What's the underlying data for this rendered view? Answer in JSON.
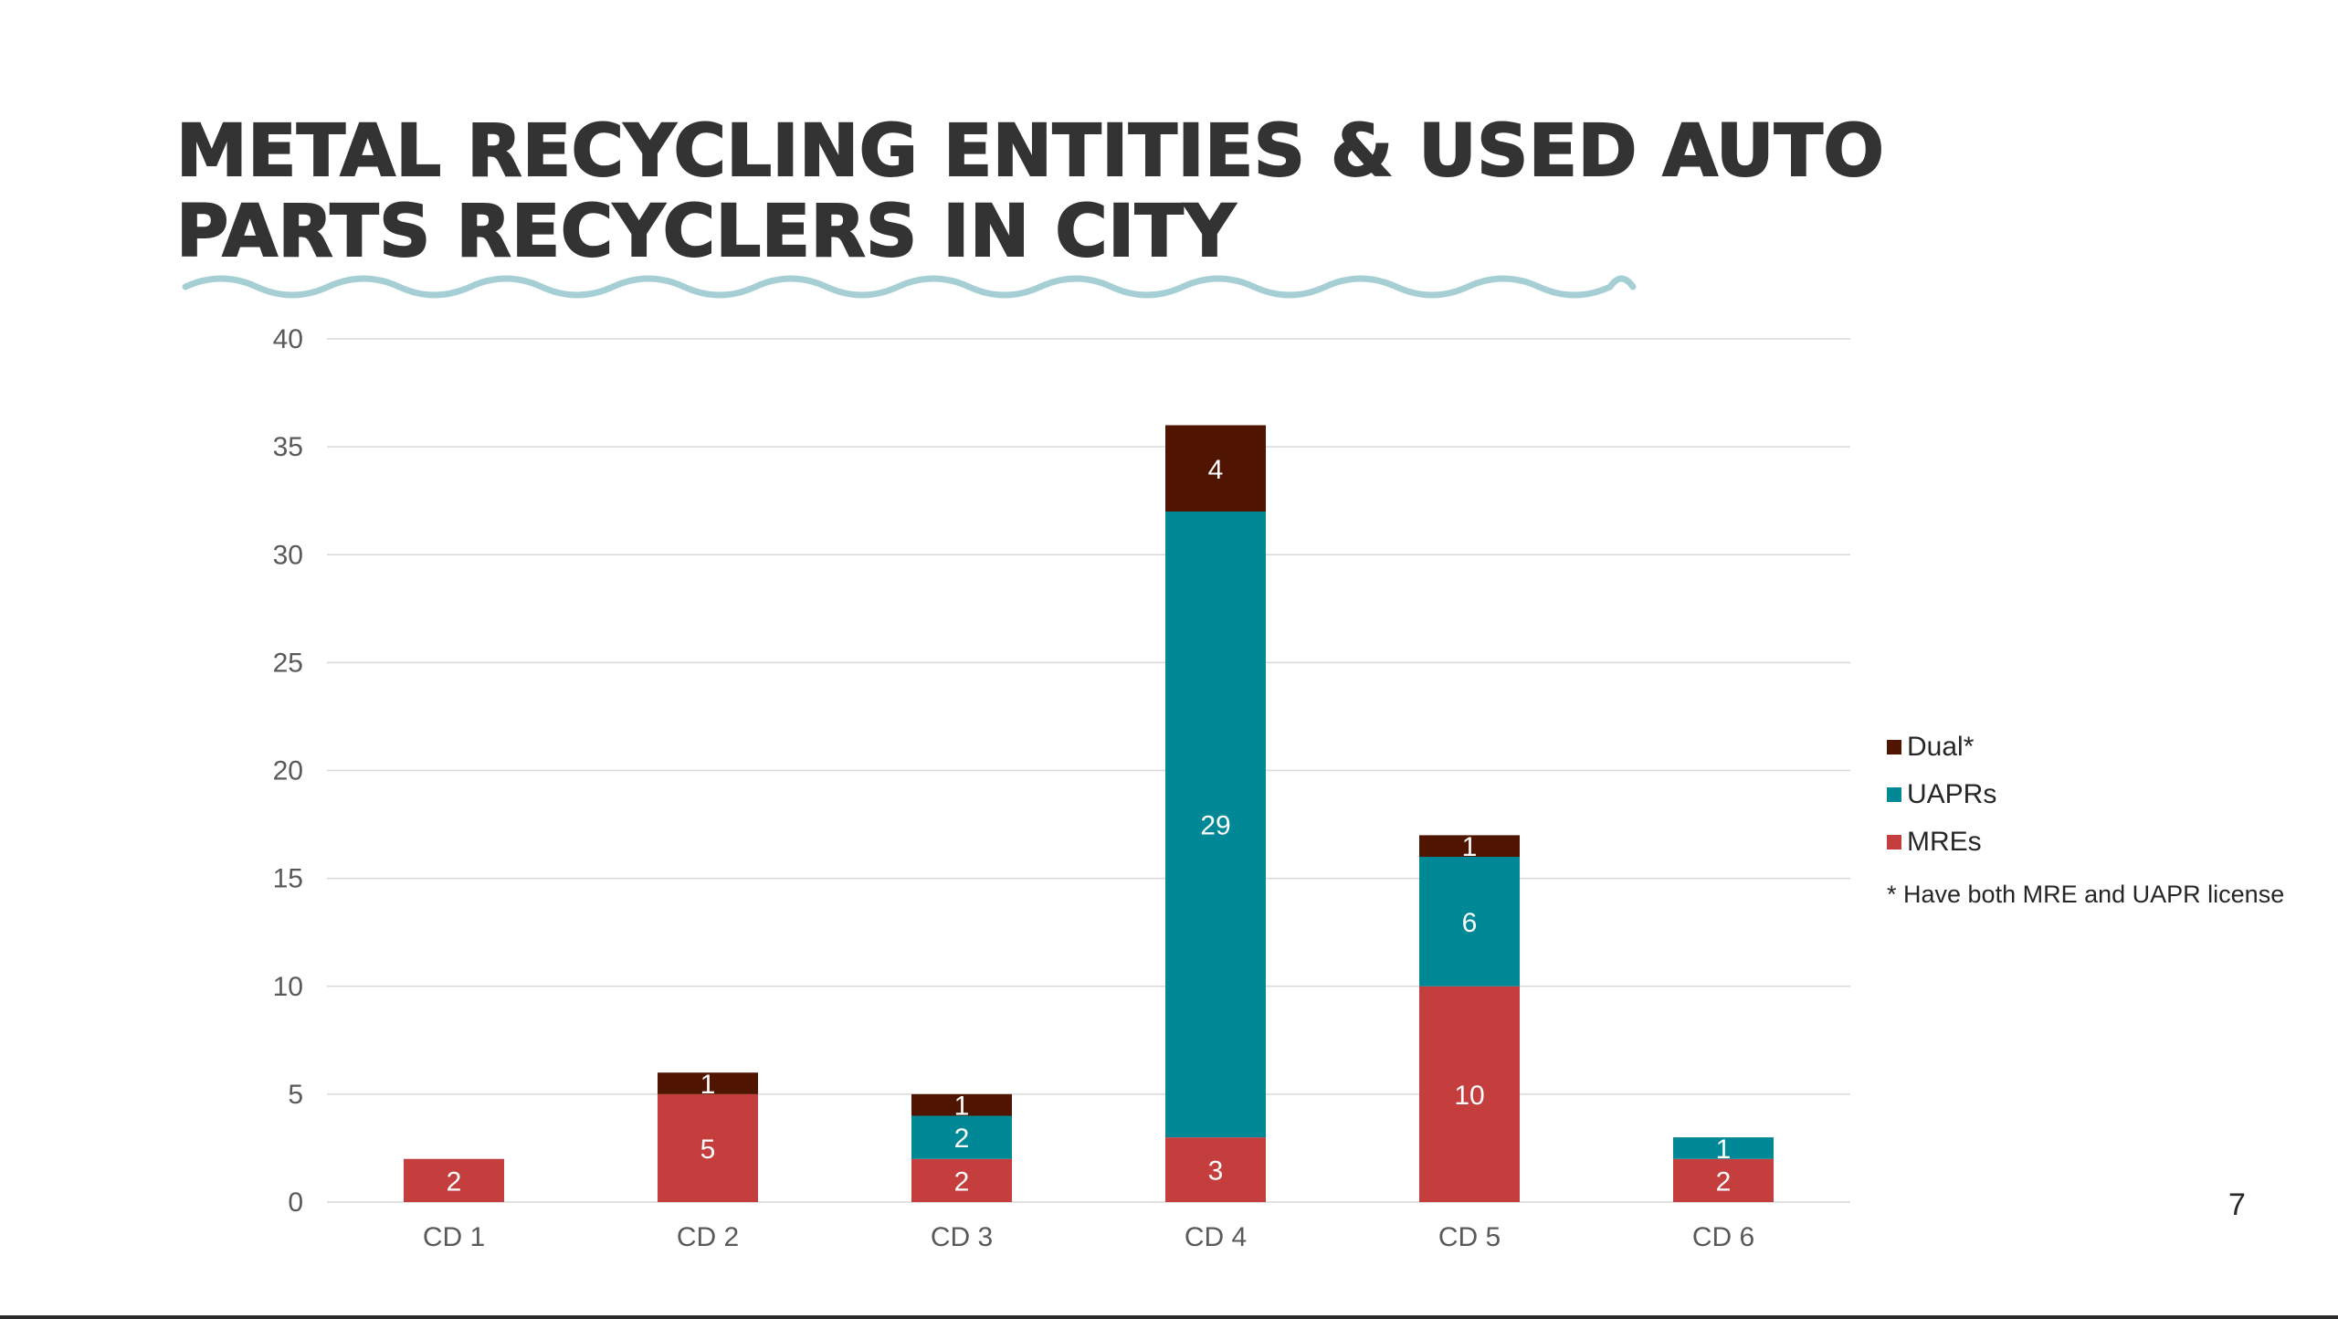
{
  "slide": {
    "title_line1": "METAL RECYCLING ENTITIES & USED AUTO",
    "title_line2": "PARTS RECYCLERS IN CITY",
    "page_number": "7",
    "legend_note": "* Have both MRE and UAPR license"
  },
  "colors": {
    "MREs": "#c43e3e",
    "UAPRs": "#008896",
    "Dual*": "#4f1500",
    "wave": "#a6cfd5",
    "grid": "#d9d9d9"
  },
  "chart_data": {
    "type": "bar",
    "stacked": true,
    "title": "METAL RECYCLING ENTITIES & USED AUTO PARTS RECYCLERS IN CITY",
    "xlabel": "",
    "ylabel": "",
    "ylim": [
      0,
      40
    ],
    "yticks": [
      0,
      5,
      10,
      15,
      20,
      25,
      30,
      35,
      40
    ],
    "grid": true,
    "legend_position": "right",
    "categories": [
      "CD 1",
      "CD 2",
      "CD 3",
      "CD 4",
      "CD 5",
      "CD 6"
    ],
    "series": [
      {
        "name": "MREs",
        "values": [
          2,
          5,
          2,
          3,
          10,
          2
        ]
      },
      {
        "name": "UAPRs",
        "values": [
          0,
          0,
          2,
          29,
          6,
          1
        ]
      },
      {
        "name": "Dual*",
        "values": [
          0,
          1,
          1,
          4,
          1,
          0
        ]
      }
    ],
    "legend_order": [
      "Dual*",
      "UAPRs",
      "MREs"
    ]
  }
}
